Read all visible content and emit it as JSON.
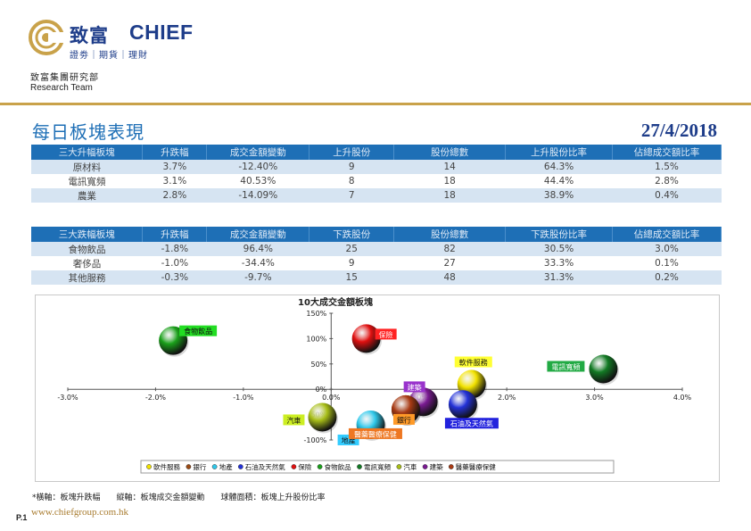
{
  "brand": {
    "name_cn": "致富",
    "name_en": "CHIEF",
    "tagline": "證劵｜期貨｜理財",
    "dept_cn": "致富集團研究部",
    "dept_en": "Research Team",
    "colors": {
      "primary": "#1e3d8a",
      "gold": "#c9a24a",
      "accent": "#1e6fb6"
    }
  },
  "report": {
    "title": "每日板塊表現",
    "date": "27/4/2018"
  },
  "top_gainers": {
    "headers": [
      "三大升幅板塊",
      "升跌幅",
      "成交金額變動",
      "上升股份",
      "股份總數",
      "上升股份比率",
      "佔總成交額比率"
    ],
    "rows": [
      [
        "原材料",
        "3.7%",
        "-12.40%",
        "9",
        "14",
        "64.3%",
        "1.5%"
      ],
      [
        "電訊寬頻",
        "3.1%",
        "40.53%",
        "8",
        "18",
        "44.4%",
        "2.8%"
      ],
      [
        "農業",
        "2.8%",
        "-14.09%",
        "7",
        "18",
        "38.9%",
        "0.4%"
      ]
    ]
  },
  "top_losers": {
    "headers": [
      "三大跌幅板塊",
      "升跌幅",
      "成交金額變動",
      "下跌股份",
      "股份總數",
      "下跌股份比率",
      "佔總成交額比率"
    ],
    "rows": [
      [
        "食物飲品",
        "-1.8%",
        "96.4%",
        "25",
        "82",
        "30.5%",
        "3.0%"
      ],
      [
        "奢侈品",
        "-1.0%",
        "-34.4%",
        "9",
        "27",
        "33.3%",
        "0.1%"
      ],
      [
        "其他服務",
        "-0.3%",
        "-9.7%",
        "15",
        "48",
        "31.3%",
        "0.2%"
      ]
    ]
  },
  "chart_data": {
    "type": "scatter",
    "title": "10大成交金額板塊",
    "xlim": [
      -3.0,
      4.0
    ],
    "ylim": [
      -100,
      150
    ],
    "x_ticks": [
      "-3.0%",
      "-2.0%",
      "-1.0%",
      "0.0%",
      "1.0%",
      "2.0%",
      "3.0%",
      "4.0%"
    ],
    "y_ticks": [
      "150%",
      "100%",
      "50%",
      "0%",
      "-50%",
      "-100%"
    ],
    "grid": false,
    "legend_position": "bottom",
    "series": [
      {
        "name": "軟件服務",
        "x": 1.6,
        "y": 10,
        "color": "#f2e200",
        "label_bg": "#ffff33"
      },
      {
        "name": "銀行",
        "x": 0.85,
        "y": -40,
        "color": "#9a4a14",
        "label_bg": "#ff9a28"
      },
      {
        "name": "地產",
        "x": 0.45,
        "y": -70,
        "color": "#2fc8ea",
        "label_bg": "#33ccff"
      },
      {
        "name": "石油及天然氣",
        "x": 1.5,
        "y": -30,
        "color": "#2432d8",
        "label_bg": "#2222dd"
      },
      {
        "name": "保險",
        "x": 0.4,
        "y": 100,
        "color": "#e01010",
        "label_bg": "#ff2222"
      },
      {
        "name": "食物飲品",
        "x": -1.8,
        "y": 96,
        "color": "#1aa01a",
        "label_bg": "#22dd22"
      },
      {
        "name": "電訊寬頻",
        "x": 3.1,
        "y": 40,
        "color": "#127a24",
        "label_bg": "#22aa44"
      },
      {
        "name": "汽車",
        "x": -0.1,
        "y": -55,
        "color": "#a8be18",
        "label_bg": "#ccee22"
      },
      {
        "name": "建築",
        "x": 1.05,
        "y": -25,
        "color": "#7a1a92",
        "label_bg": "#9933cc"
      },
      {
        "name": "醫藥醫療保健",
        "x": 0.85,
        "y": -40,
        "color": "#a83a14",
        "label_bg": "#ee7722"
      }
    ]
  },
  "footnote": "*橫軸：板塊升跌幅　　縱軸：板塊成交金額變動　　球體面積：板塊上升股份比率",
  "page_number": "P.1",
  "website": "www.chiefgroup.com.hk"
}
